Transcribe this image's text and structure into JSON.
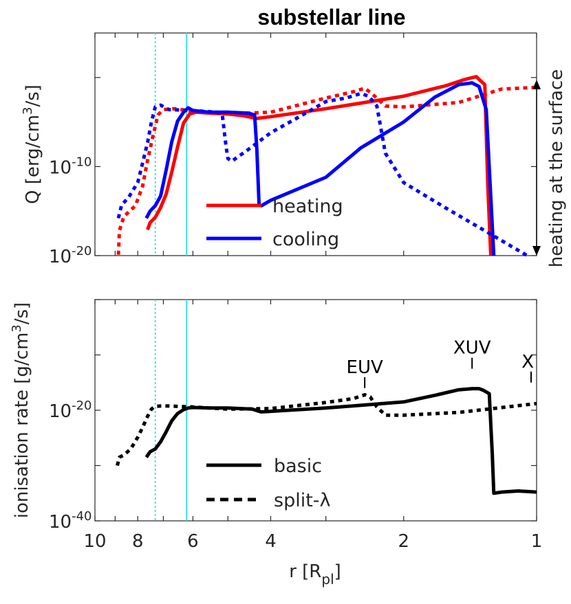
{
  "chart_data": [
    {
      "type": "line",
      "title": "substellar line",
      "ylabel_main": "Q [erg/cm",
      "ylabel_sup": "3",
      "ylabel_tail": "/s]",
      "right_label": "heating at the surface",
      "x_scale": "log-reversed",
      "xlim": [
        10,
        1
      ],
      "ylim_log10": [
        -20,
        5
      ],
      "ytick_labels": [
        {
          "base": "10",
          "exp": "-10",
          "value": -10
        },
        {
          "base": "10",
          "exp": "-20",
          "value": -20
        }
      ],
      "vlines": [
        {
          "x": 7.3,
          "style": "dotted",
          "color": "#33e0e6"
        },
        {
          "x": 6.2,
          "style": "solid",
          "color": "#33e0e6"
        }
      ],
      "legend": [
        {
          "label": "heating",
          "color": "#ff0000"
        },
        {
          "label": "cooling",
          "color": "#0000ff"
        }
      ],
      "series": [
        {
          "name": "heating basic",
          "color": "#ff0000",
          "style": "solid",
          "x": [
            7.6,
            7.5,
            7.3,
            7.1,
            6.9,
            6.7,
            6.5,
            6.3,
            6.1,
            5.9,
            5.5,
            5.0,
            4.6,
            4.3,
            4.0,
            3.0,
            2.0,
            1.6,
            1.45,
            1.37,
            1.33,
            1.31,
            1.29,
            1.27
          ],
          "y": [
            -17.1,
            -16.3,
            -15.7,
            -14.6,
            -13.1,
            -10.6,
            -7.8,
            -5.1,
            -4.1,
            -3.9,
            -4.0,
            -4.1,
            -4.3,
            -4.6,
            -4.4,
            -3.5,
            -2.1,
            -0.9,
            -0.2,
            0.1,
            -0.5,
            -0.8,
            -12.0,
            -20
          ]
        },
        {
          "name": "heating split-lambda",
          "color": "#ff0000",
          "style": "dotted",
          "x": [
            8.85,
            8.8,
            8.6,
            8.1,
            7.8,
            7.6,
            7.4,
            7.2,
            7.0,
            6.6,
            6.0,
            5.0,
            4.0,
            3.0,
            2.6,
            2.45,
            2.35,
            2.2,
            2.0,
            1.5,
            1.2,
            1.0
          ],
          "y": [
            -19.9,
            -17.2,
            -15.6,
            -14.4,
            -12.2,
            -9.3,
            -6.7,
            -4.2,
            -3.6,
            -3.5,
            -3.8,
            -4.1,
            -3.9,
            -2.3,
            -1.6,
            -1.2,
            -1.9,
            -3.2,
            -3.3,
            -2.8,
            -1.3,
            -1.1
          ]
        },
        {
          "name": "cooling basic",
          "color": "#0000ff",
          "style": "solid",
          "x": [
            7.65,
            7.5,
            7.3,
            7.1,
            6.9,
            6.7,
            6.5,
            6.3,
            6.15,
            6.0,
            5.5,
            5.0,
            4.5,
            4.35,
            4.3,
            4.25,
            4.2,
            4.0,
            3.0,
            2.5,
            2.0,
            1.7,
            1.5,
            1.4,
            1.35,
            1.3,
            1.25
          ],
          "y": [
            -15.8,
            -15.0,
            -14.4,
            -13.3,
            -10.4,
            -7.2,
            -4.9,
            -3.9,
            -3.4,
            -3.7,
            -3.9,
            -3.9,
            -4.0,
            -4.2,
            -8.0,
            -14.3,
            -14.4,
            -13.8,
            -11.2,
            -7.9,
            -5.0,
            -2.2,
            -0.8,
            -0.6,
            -1.0,
            -3.6,
            -20
          ]
        },
        {
          "name": "cooling split-lambda",
          "color": "#0000ff",
          "style": "dotted",
          "x": [
            8.85,
            8.7,
            8.4,
            8.0,
            7.8,
            7.6,
            7.45,
            7.3,
            7.1,
            6.8,
            6.0,
            5.3,
            5.15,
            5.05,
            5.0,
            4.9,
            4.5,
            4.0,
            3.5,
            3.0,
            2.7,
            2.5,
            2.4,
            2.3,
            2.2,
            2.0,
            1.6,
            1.3,
            1.05
          ],
          "y": [
            -15.8,
            -14.3,
            -13.5,
            -11.8,
            -9.6,
            -7.3,
            -5.0,
            -3.3,
            -3.1,
            -3.6,
            -3.7,
            -3.9,
            -4.1,
            -7.7,
            -9.1,
            -9.4,
            -8.1,
            -6.2,
            -4.6,
            -2.7,
            -2.3,
            -1.8,
            -2.1,
            -3.2,
            -8.5,
            -11.8,
            -14.7,
            -17.3,
            -20
          ]
        }
      ]
    },
    {
      "type": "line",
      "ylabel_main": "ionisation rate [g/cm",
      "ylabel_sup": "3",
      "ylabel_tail": "/s]",
      "xlabel_main": "r [R",
      "xlabel_sub": "pl",
      "xlabel_tail": "]",
      "x_scale": "log-reversed",
      "xlim": [
        10,
        1
      ],
      "xticks": [
        10,
        8,
        6,
        4,
        2,
        1
      ],
      "ylim_log10": [
        -40,
        0
      ],
      "ytick_labels": [
        {
          "base": "10",
          "exp": "-20",
          "value": -20
        },
        {
          "base": "10",
          "exp": "-40",
          "value": -40
        }
      ],
      "vlines": [
        {
          "x": 7.3,
          "style": "dotted",
          "color": "#33e0e6"
        },
        {
          "x": 6.2,
          "style": "solid",
          "color": "#33e0e6"
        }
      ],
      "legend": [
        {
          "label": "basic",
          "style": "solid",
          "color": "#000000"
        },
        {
          "label": "split-λ",
          "style": "dashed",
          "color": "#000000"
        }
      ],
      "annotations": [
        {
          "text": "EUV",
          "x": 2.45,
          "y": -16
        },
        {
          "text": "XUV",
          "x": 1.4,
          "y": -12.5
        },
        {
          "text": "X",
          "x": 1.0,
          "y": -15
        }
      ],
      "series": [
        {
          "name": "basic",
          "color": "#000000",
          "style": "solid",
          "x": [
            7.65,
            7.5,
            7.3,
            7.1,
            6.9,
            6.7,
            6.5,
            6.3,
            6.15,
            6.0,
            5.5,
            5.0,
            4.4,
            4.25,
            4.2,
            4.0,
            3.0,
            2.0,
            1.7,
            1.5,
            1.4,
            1.35,
            1.32,
            1.28,
            1.26,
            1.25,
            1.2,
            1.1,
            1.0
          ],
          "y": [
            -28.5,
            -27.5,
            -27.0,
            -25.7,
            -23.9,
            -21.9,
            -20.6,
            -19.9,
            -19.6,
            -19.5,
            -19.6,
            -19.6,
            -19.8,
            -20.2,
            -20.3,
            -20.2,
            -19.6,
            -18.5,
            -17.3,
            -16.3,
            -16.1,
            -16.1,
            -16.4,
            -17.0,
            -28.0,
            -35.0,
            -34.8,
            -34.6,
            -34.8
          ]
        },
        {
          "name": "split-λ",
          "color": "#000000",
          "style": "dotted",
          "x": [
            8.9,
            8.8,
            8.6,
            8.3,
            8.0,
            7.8,
            7.6,
            7.45,
            7.3,
            7.0,
            6.0,
            5.0,
            4.0,
            3.0,
            2.6,
            2.45,
            2.38,
            2.3,
            2.2,
            2.0,
            1.5,
            1.0
          ],
          "y": [
            -30.0,
            -28.5,
            -28.1,
            -27.0,
            -24.9,
            -23.1,
            -21.1,
            -19.8,
            -19.3,
            -19.2,
            -19.4,
            -19.8,
            -19.7,
            -18.6,
            -17.9,
            -17.2,
            -17.6,
            -19.4,
            -20.9,
            -20.9,
            -20.4,
            -18.8
          ]
        }
      ]
    }
  ]
}
